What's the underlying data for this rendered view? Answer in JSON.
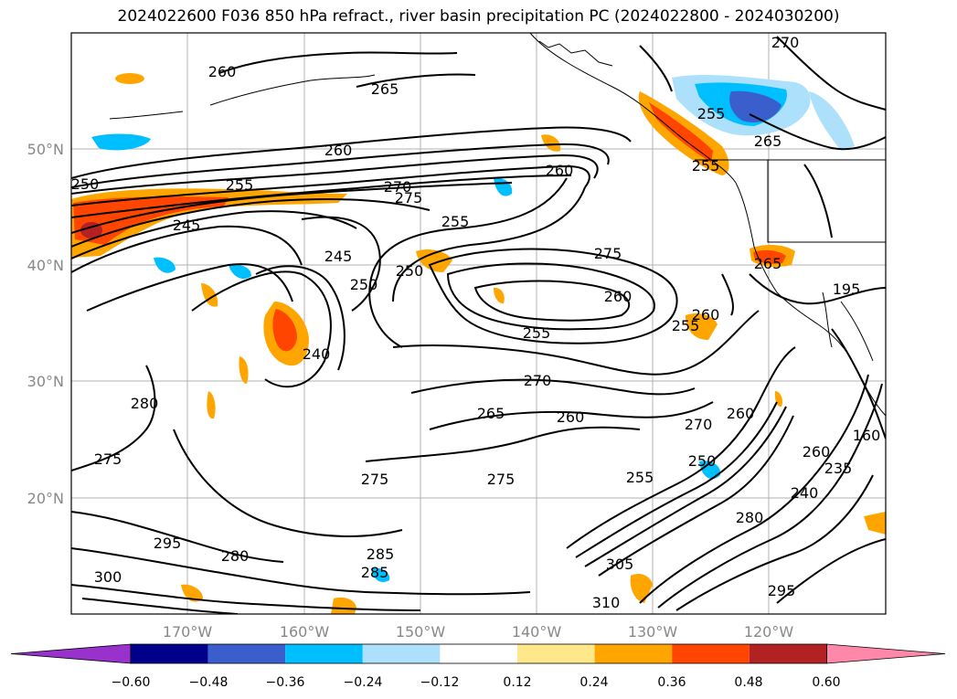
{
  "title": "2024022600 F036 850 hPa refract., river basin precipitation PC (2024022800 - 2024030200)",
  "lat_labels": [
    "50°N",
    "40°N",
    "30°N",
    "20°N"
  ],
  "lon_labels": [
    "170°W",
    "160°W",
    "150°W",
    "140°W",
    "130°W",
    "120°W"
  ],
  "contour_labels": [
    "260",
    "265",
    "260",
    "255",
    "250",
    "270",
    "275",
    "255",
    "245",
    "240",
    "250",
    "260",
    "245",
    "275",
    "260",
    "255",
    "265",
    "270",
    "260",
    "270",
    "260",
    "280",
    "275",
    "275",
    "275",
    "255",
    "250",
    "280",
    "260",
    "240",
    "235",
    "295",
    "280",
    "285",
    "285",
    "300",
    "305",
    "310",
    "295",
    "270",
    "255",
    "265",
    "255",
    "250",
    "255",
    "160",
    "195",
    "265",
    "260"
  ],
  "colorbar": {
    "ticks": [
      "−0.60",
      "−0.48",
      "−0.36",
      "−0.24",
      "−0.12",
      "0.12",
      "0.24",
      "0.36",
      "0.48",
      "0.60"
    ],
    "colors": [
      "#9932CC",
      "#00008B",
      "#3A5FCD",
      "#00BFFF",
      "#ADE0FA",
      "#FFFFFF",
      "#FFE88A",
      "#FFA500",
      "#FF4500",
      "#B22222",
      "#FF88AA"
    ]
  }
}
